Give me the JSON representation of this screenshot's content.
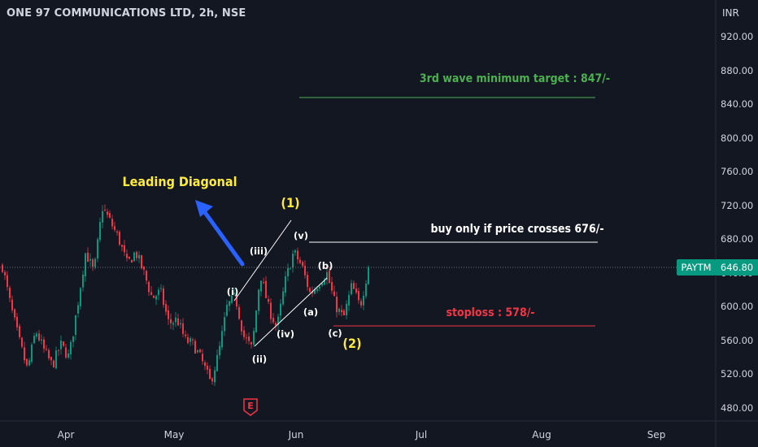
{
  "header": {
    "title": "ONE 97 COMMUNICATIONS LTD, 2h, NSE",
    "currency": "INR"
  },
  "symbol": {
    "ticker": "PAYTM",
    "last_price": "646.80"
  },
  "events": {
    "earnings_label": "E"
  },
  "colors": {
    "up": "#089981",
    "down": "#f23645",
    "target": "#4caf50",
    "stoploss": "#f23645",
    "buy_line": "#ffffff",
    "wave_label": "#ffeb3b",
    "arrow": "#2962ff",
    "background": "#131722"
  },
  "chart_data": {
    "type": "candlestick",
    "title": "ONE 97 COMMUNICATIONS LTD, 2h, NSE",
    "ylabel": "INR",
    "ylim": [
      460,
      940
    ],
    "yticks": [
      "920.00",
      "880.00",
      "840.00",
      "800.00",
      "760.00",
      "720.00",
      "680.00",
      "640.00",
      "600.00",
      "560.00",
      "520.00",
      "480.00"
    ],
    "xticks": [
      "Apr",
      "May",
      "Jun",
      "Jul",
      "Aug",
      "Sep"
    ],
    "grid": false,
    "last_price": 646.8,
    "price_path": [
      [
        "Mar",
        648
      ],
      [
        "Mar",
        600
      ],
      [
        "Mar",
        560
      ],
      [
        "Mar",
        525
      ],
      [
        "Mar",
        572
      ],
      [
        "Mar",
        548
      ],
      [
        "Mar",
        530
      ],
      [
        "Mar",
        555
      ],
      [
        "Mar",
        540
      ],
      [
        "Apr",
        600
      ],
      [
        "Apr",
        665
      ],
      [
        "Apr",
        640
      ],
      [
        "Apr",
        718
      ],
      [
        "Apr",
        700
      ],
      [
        "Apr",
        680
      ],
      [
        "Apr",
        650
      ],
      [
        "Apr",
        665
      ],
      [
        "Apr",
        640
      ],
      [
        "Apr",
        610
      ],
      [
        "Apr",
        618
      ],
      [
        "Apr",
        580
      ],
      [
        "May",
        585
      ],
      [
        "May",
        560
      ],
      [
        "May",
        555
      ],
      [
        "May",
        535
      ],
      [
        "May",
        510
      ],
      [
        "May",
        545
      ],
      [
        "May",
        600
      ],
      [
        "May",
        612
      ],
      [
        "May",
        565
      ],
      [
        "May",
        550
      ],
      [
        "May",
        640
      ],
      [
        "May",
        598
      ],
      [
        "May",
        575
      ],
      [
        "May",
        630
      ],
      [
        "Jun",
        665
      ],
      [
        "Jun",
        648
      ],
      [
        "Jun",
        615
      ],
      [
        "Jun",
        628
      ],
      [
        "Jun",
        640
      ],
      [
        "Jun",
        602
      ],
      [
        "Jun",
        586
      ],
      [
        "Jun",
        625
      ],
      [
        "Jun",
        600
      ],
      [
        "Jun",
        646.8
      ]
    ],
    "annotations": [
      {
        "text": "3rd wave minimum target : 847/-",
        "price": 847
      },
      {
        "text": "buy only if price crosses 676/-",
        "price": 676
      },
      {
        "text": "stoploss : 578/-",
        "price": 578
      },
      {
        "text": "Leading Diagonal"
      }
    ],
    "wave_labels": [
      "(1)",
      "(2)",
      "(i)",
      "(ii)",
      "(iii)",
      "(iv)",
      "(v)",
      "(a)",
      "(b)",
      "(c)"
    ]
  }
}
